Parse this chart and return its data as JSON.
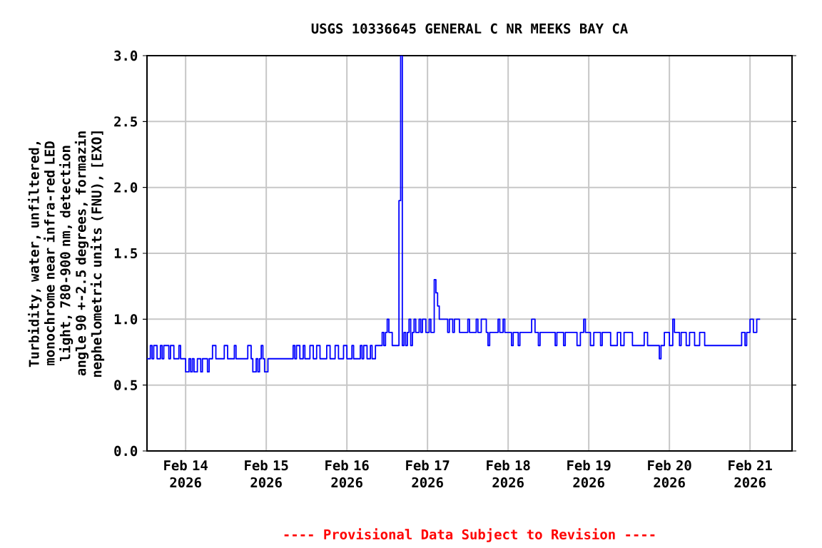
{
  "chart_data": {
    "type": "step",
    "title": "USGS 10336645 GENERAL C NR MEEKS BAY CA",
    "ylabel": "Turbidity, water, unfiltered, monochrome near infra-red LED light, 780-900 nm, detection angle 90 +-2.5 degrees, formazin nephelometric units (FNU), [EXO]",
    "annotations": [
      "---- Provisional Data Subject to Revision ----"
    ],
    "x": [
      "2026-02-13T12:30",
      "2026-02-13T13:30",
      "2026-02-13T14:00",
      "2026-02-13T14:30",
      "2026-02-13T15:30",
      "2026-02-13T16:30",
      "2026-02-13T17:00",
      "2026-02-13T17:30",
      "2026-02-13T19:00",
      "2026-02-13T19:30",
      "2026-02-13T20:30",
      "2026-02-13T22:00",
      "2026-02-13T22:30",
      "2026-02-14T00:00",
      "2026-02-14T01:00",
      "2026-02-14T01:30",
      "2026-02-14T02:00",
      "2026-02-14T02:30",
      "2026-02-14T03:30",
      "2026-02-14T04:30",
      "2026-02-14T05:00",
      "2026-02-14T06:30",
      "2026-02-14T07:00",
      "2026-02-14T08:00",
      "2026-02-14T09:00",
      "2026-02-14T11:30",
      "2026-02-14T12:30",
      "2026-02-14T14:30",
      "2026-02-14T15:00",
      "2026-02-14T18:30",
      "2026-02-14T19:30",
      "2026-02-14T20:00",
      "2026-02-14T21:00",
      "2026-02-14T21:30",
      "2026-02-14T22:00",
      "2026-02-14T22:30",
      "2026-02-14T23:00",
      "2026-02-14T23:30",
      "2026-02-15T00:30",
      "2026-02-15T08:00",
      "2026-02-15T08:30",
      "2026-02-15T09:00",
      "2026-02-15T10:00",
      "2026-02-15T11:00",
      "2026-02-15T11:30",
      "2026-02-15T13:00",
      "2026-02-15T14:00",
      "2026-02-15T15:00",
      "2026-02-15T16:00",
      "2026-02-15T18:00",
      "2026-02-15T19:00",
      "2026-02-15T20:30",
      "2026-02-15T21:30",
      "2026-02-15T23:00",
      "2026-02-16T00:00",
      "2026-02-16T01:30",
      "2026-02-16T02:00",
      "2026-02-16T04:00",
      "2026-02-16T04:30",
      "2026-02-16T05:00",
      "2026-02-16T06:00",
      "2026-02-16T07:00",
      "2026-02-16T07:30",
      "2026-02-16T08:30",
      "2026-02-16T10:30",
      "2026-02-16T11:00",
      "2026-02-16T11:30",
      "2026-02-16T12:00",
      "2026-02-16T12:30",
      "2026-02-16T13:30",
      "2026-02-16T15:30",
      "2026-02-16T16:00",
      "2026-02-16T16:30",
      "2026-02-16T17:00",
      "2026-02-16T17:30",
      "2026-02-16T18:00",
      "2026-02-16T18:30",
      "2026-02-16T19:00",
      "2026-02-16T19:30",
      "2026-02-16T20:00",
      "2026-02-16T20:30",
      "2026-02-16T21:30",
      "2026-02-16T22:00",
      "2026-02-16T22:30",
      "2026-02-16T23:30",
      "2026-02-17T00:30",
      "2026-02-17T01:00",
      "2026-02-17T02:00",
      "2026-02-17T02:30",
      "2026-02-17T03:00",
      "2026-02-17T03:30",
      "2026-02-17T06:00",
      "2026-02-17T06:30",
      "2026-02-17T07:30",
      "2026-02-17T08:00",
      "2026-02-17T09:30",
      "2026-02-17T12:00",
      "2026-02-17T12:30",
      "2026-02-17T14:30",
      "2026-02-17T15:00",
      "2026-02-17T16:00",
      "2026-02-17T17:30",
      "2026-02-17T18:00",
      "2026-02-17T18:30",
      "2026-02-17T21:00",
      "2026-02-17T21:30",
      "2026-02-17T22:30",
      "2026-02-17T23:00",
      "2026-02-18T01:00",
      "2026-02-18T01:30",
      "2026-02-18T03:00",
      "2026-02-18T03:30",
      "2026-02-18T07:00",
      "2026-02-18T08:00",
      "2026-02-18T09:00",
      "2026-02-18T09:30",
      "2026-02-18T14:00",
      "2026-02-18T14:30",
      "2026-02-18T16:30",
      "2026-02-18T17:00",
      "2026-02-18T20:30",
      "2026-02-18T21:30",
      "2026-02-18T22:30",
      "2026-02-18T23:00",
      "2026-02-19T00:30",
      "2026-02-19T01:30",
      "2026-02-19T03:30",
      "2026-02-19T04:00",
      "2026-02-19T06:30",
      "2026-02-19T08:30",
      "2026-02-19T09:30",
      "2026-02-19T10:30",
      "2026-02-19T13:00",
      "2026-02-19T16:30",
      "2026-02-19T17:30",
      "2026-02-19T21:00",
      "2026-02-19T21:30",
      "2026-02-19T22:30",
      "2026-02-20T00:00",
      "2026-02-20T01:00",
      "2026-02-20T01:30",
      "2026-02-20T03:00",
      "2026-02-20T03:30",
      "2026-02-20T05:00",
      "2026-02-20T06:00",
      "2026-02-20T07:30",
      "2026-02-20T09:00",
      "2026-02-20T10:30",
      "2026-02-20T21:30",
      "2026-02-20T22:30",
      "2026-02-20T23:00",
      "2026-02-21T00:00",
      "2026-02-21T01:00",
      "2026-02-21T02:00",
      "2026-02-21T03:00"
    ],
    "series": [
      {
        "color": "#0000ff",
        "values": [
          0.7,
          0.8,
          0.7,
          0.8,
          0.7,
          0.8,
          0.7,
          0.8,
          0.7,
          0.8,
          0.7,
          0.8,
          0.7,
          0.6,
          0.7,
          0.6,
          0.7,
          0.6,
          0.7,
          0.6,
          0.7,
          0.6,
          0.7,
          0.8,
          0.7,
          0.8,
          0.7,
          0.8,
          0.7,
          0.8,
          0.7,
          0.6,
          0.7,
          0.6,
          0.7,
          0.8,
          0.7,
          0.6,
          0.7,
          0.8,
          0.7,
          0.8,
          0.7,
          0.8,
          0.7,
          0.8,
          0.7,
          0.8,
          0.7,
          0.8,
          0.7,
          0.8,
          0.7,
          0.8,
          0.7,
          0.8,
          0.7,
          0.8,
          0.7,
          0.8,
          0.7,
          0.8,
          0.7,
          0.8,
          0.9,
          0.8,
          0.9,
          1.0,
          0.9,
          0.8,
          1.9,
          3.0,
          0.8,
          0.9,
          0.8,
          0.9,
          1.0,
          0.8,
          0.9,
          1.0,
          0.9,
          1.0,
          0.9,
          1.0,
          0.9,
          1.0,
          0.9,
          1.3,
          1.2,
          1.1,
          1.0,
          0.9,
          1.0,
          0.9,
          1.0,
          0.9,
          1.0,
          0.9,
          1.0,
          0.9,
          1.0,
          0.9,
          0.8,
          0.9,
          1.0,
          0.9,
          1.0,
          0.9,
          0.8,
          0.9,
          0.8,
          0.9,
          1.0,
          0.9,
          0.8,
          0.9,
          0.8,
          0.9,
          0.8,
          0.9,
          0.8,
          0.9,
          1.0,
          0.9,
          0.8,
          0.9,
          0.8,
          0.9,
          0.8,
          0.9,
          0.8,
          0.9,
          0.8,
          0.9,
          0.8,
          0.7,
          0.8,
          0.9,
          0.8,
          1.0,
          0.9,
          0.8,
          0.9,
          0.8,
          0.9,
          0.8,
          0.9,
          0.8,
          0.9,
          0.8,
          0.9,
          1.0,
          0.9,
          1.0,
          1.0
        ]
      }
    ],
    "xlim": [
      "2026-02-13T12:30",
      "2026-02-21T12:30"
    ],
    "xticks": [
      {
        "value": "2026-02-14",
        "label": "Feb 14 2026"
      },
      {
        "value": "2026-02-15",
        "label": "Feb 15 2026"
      },
      {
        "value": "2026-02-16",
        "label": "Feb 16 2026"
      },
      {
        "value": "2026-02-17",
        "label": "Feb 17 2026"
      },
      {
        "value": "2026-02-18",
        "label": "Feb 18 2026"
      },
      {
        "value": "2026-02-19",
        "label": "Feb 19 2026"
      },
      {
        "value": "2026-02-20",
        "label": "Feb 20 2026"
      },
      {
        "value": "2026-02-21",
        "label": "Feb 21 2026"
      }
    ],
    "ylim": [
      0.0,
      3.0
    ],
    "yticks": [
      {
        "value": 0,
        "label": "0.0"
      },
      {
        "value": 0.5,
        "label": "0.5"
      },
      {
        "value": 1,
        "label": "1.0"
      },
      {
        "value": 1.5,
        "label": "1.5"
      },
      {
        "value": 2,
        "label": "2.0"
      },
      {
        "value": 2.5,
        "label": "2.5"
      },
      {
        "value": 3,
        "label": "3.0"
      }
    ],
    "grid": true
  }
}
